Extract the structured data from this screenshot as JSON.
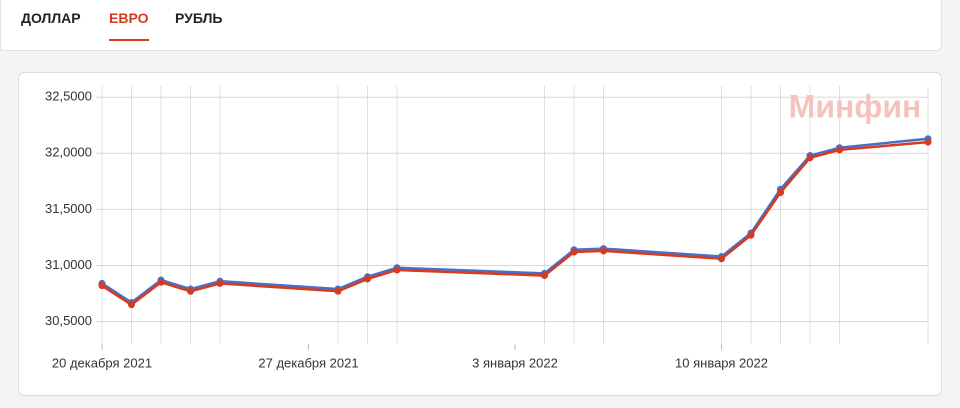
{
  "tabs": [
    "ДОЛЛАР",
    "ЕВРО",
    "РУБЛЬ"
  ],
  "active_tab": 1,
  "chart_data": {
    "type": "line",
    "watermark": "Минфин",
    "x": [
      "2021-12-20",
      "2021-12-21",
      "2021-12-22",
      "2021-12-23",
      "2021-12-24",
      "2021-12-28",
      "2021-12-29",
      "2021-12-30",
      "2022-01-04",
      "2022-01-05",
      "2022-01-06",
      "2022-01-10",
      "2022-01-11",
      "2022-01-12",
      "2022-01-13",
      "2022-01-14",
      "2022-01-17"
    ],
    "series": [
      {
        "color": "#4a6fc9",
        "values": [
          30.84,
          30.67,
          30.87,
          30.79,
          30.86,
          30.79,
          30.9,
          30.98,
          30.93,
          31.14,
          31.15,
          31.08,
          31.29,
          31.68,
          31.98,
          32.05,
          32.13
        ]
      },
      {
        "color": "#d63b1f",
        "values": [
          30.82,
          30.65,
          30.85,
          30.77,
          30.84,
          30.77,
          30.88,
          30.96,
          30.91,
          31.12,
          31.13,
          31.06,
          31.27,
          31.65,
          31.96,
          32.03,
          32.1
        ]
      }
    ],
    "xlim": [
      "2021-12-20",
      "2022-01-17"
    ],
    "xticks": [
      {
        "value": "2021-12-20",
        "label": "20 декабря 2021"
      },
      {
        "value": "2021-12-27",
        "label": "27 декабря 2021"
      },
      {
        "value": "2022-01-03",
        "label": "3 января 2022"
      },
      {
        "value": "2022-01-10",
        "label": "10 января 2022"
      }
    ],
    "ylim": [
      30.3,
      32.6
    ],
    "yticks": [
      {
        "value": 30.5,
        "label": "30,5000"
      },
      {
        "value": 31,
        "label": "31,0000"
      },
      {
        "value": 31.5,
        "label": "31,5000"
      },
      {
        "value": 32,
        "label": "32,0000"
      },
      {
        "value": 32.5,
        "label": "32,5000"
      }
    ],
    "grid": true
  }
}
